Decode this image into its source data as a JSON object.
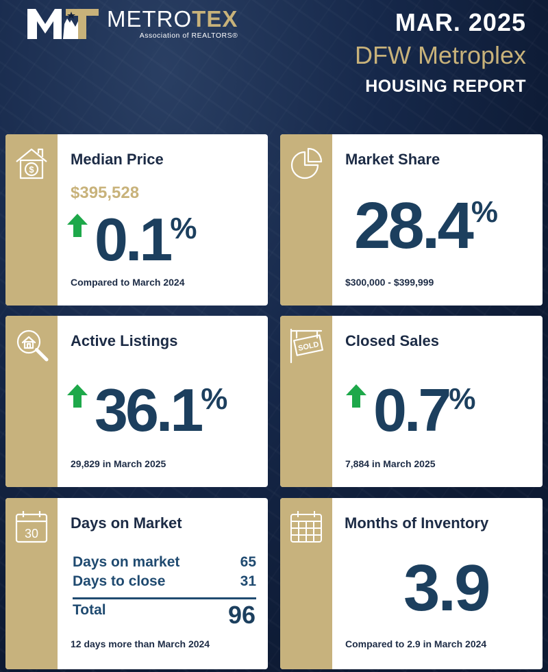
{
  "header": {
    "logo_name_a": "METRO",
    "logo_name_b": "TEX",
    "logo_sub": "Association of REALTORS®",
    "date": "MAR. 2025",
    "region": "DFW Metroplex",
    "report": "HOUSING REPORT"
  },
  "colors": {
    "navy": "#0f1e3a",
    "gold": "#c7b27d",
    "teal": "#1c3f5e",
    "up_green": "#1ea84a"
  },
  "median_price": {
    "icon": "house-dollar-icon",
    "title": "Median Price",
    "price": "$395,528",
    "change": "0.1",
    "pct": "%",
    "direction": "up",
    "footer": "Compared to March 2024"
  },
  "market_share": {
    "icon": "pie-chart-icon",
    "title": "Market Share",
    "value": "28.4",
    "pct": "%",
    "footer": "$300,000 - $399,999"
  },
  "active_listings": {
    "icon": "magnifier-house-icon",
    "title": "Active Listings",
    "change": "36.1",
    "pct": "%",
    "direction": "up",
    "footer": "29,829 in March 2025"
  },
  "closed_sales": {
    "icon": "sold-sign-icon",
    "title": "Closed Sales",
    "change": "0.7",
    "pct": "%",
    "direction": "up",
    "footer": "7,884 in March 2025"
  },
  "days_on_market": {
    "icon": "calendar-30-icon",
    "icon_text": "30",
    "title": "Days on Market",
    "rows": [
      {
        "label": "Days on market",
        "value": "65"
      },
      {
        "label": "Days to close",
        "value": "31"
      }
    ],
    "total_label": "Total",
    "total_value": "96",
    "footer": "12 days more than March 2024"
  },
  "months_inventory": {
    "icon": "calendar-grid-icon",
    "title": "Months of Inventory",
    "value": "3.9",
    "footer": "Compared to 2.9 in March 2024"
  }
}
